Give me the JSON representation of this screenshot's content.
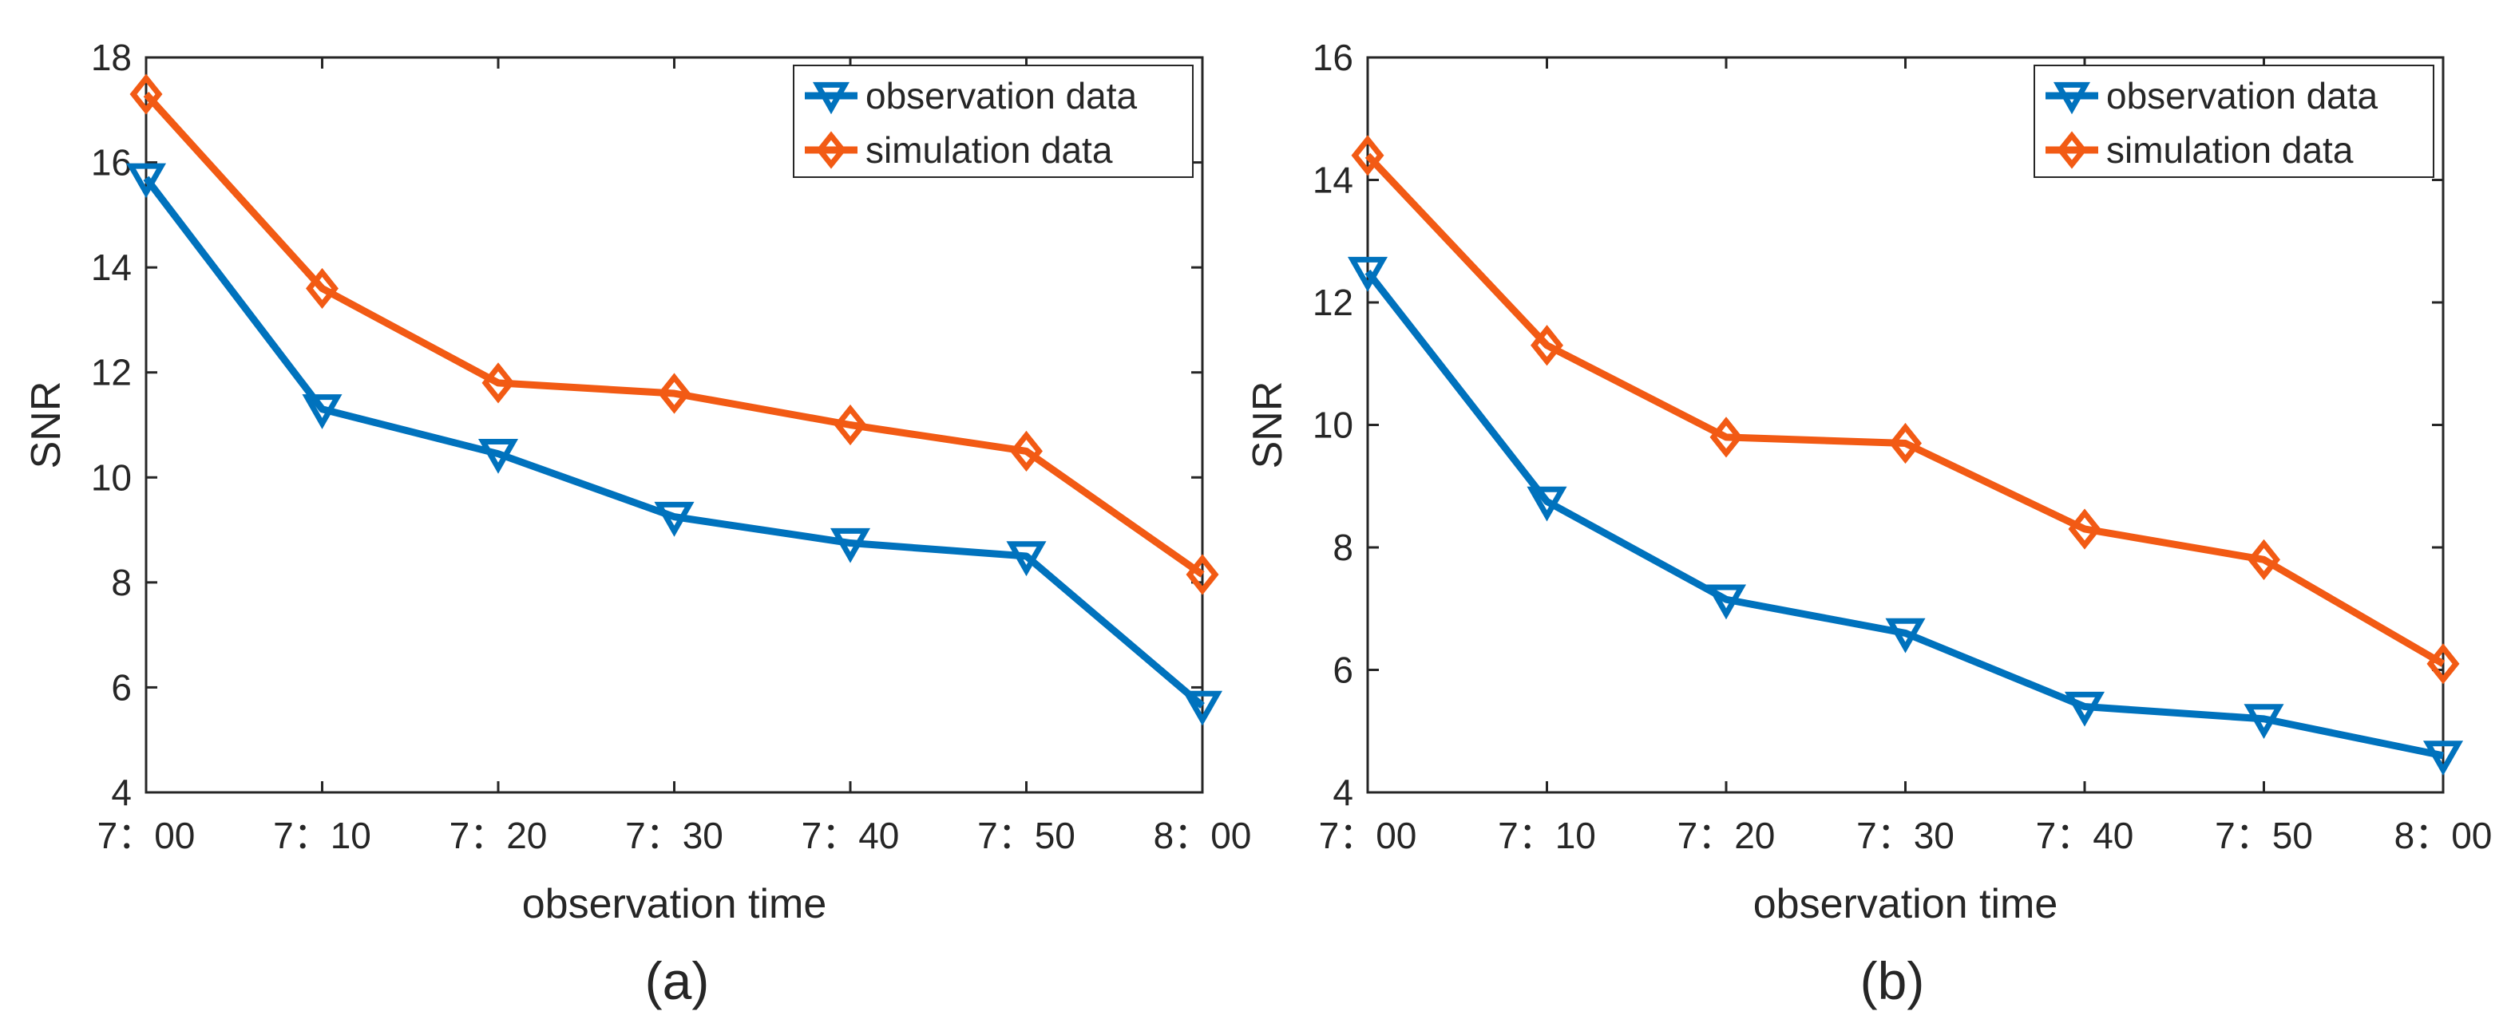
{
  "chart_data": [
    {
      "type": "line",
      "panel_label": "(a)",
      "categories": [
        "7：00",
        "7：10",
        "7：20",
        "7：30",
        "7：40",
        "7：50",
        "8：00"
      ],
      "xlabel": "observation time",
      "ylabel": "SNR",
      "ylim": [
        4,
        18
      ],
      "yticks": [
        4,
        6,
        8,
        10,
        12,
        14,
        16,
        18
      ],
      "legend_position": "top-right",
      "series": [
        {
          "name": "observation data",
          "color": "#0072BD",
          "marker": "triangle-down",
          "values": [
            15.7,
            11.3,
            10.45,
            9.25,
            8.75,
            8.5,
            5.65
          ]
        },
        {
          "name": "simulation data",
          "color": "#F25A14",
          "marker": "diamond",
          "values": [
            17.3,
            13.6,
            11.8,
            11.6,
            11.0,
            10.5,
            8.15
          ]
        }
      ]
    },
    {
      "type": "line",
      "panel_label": "(b)",
      "categories": [
        "7：00",
        "7：10",
        "7：20",
        "7：30",
        "7：40",
        "7：50",
        "8：00"
      ],
      "xlabel": "observation time",
      "ylabel": "SNR",
      "ylim": [
        4,
        16
      ],
      "yticks": [
        4,
        6,
        8,
        10,
        12,
        14,
        16
      ],
      "legend_position": "top-right",
      "series": [
        {
          "name": "observation data",
          "color": "#0072BD",
          "marker": "triangle-down",
          "values": [
            12.5,
            8.75,
            7.15,
            6.6,
            5.4,
            5.2,
            4.6
          ]
        },
        {
          "name": "simulation data",
          "color": "#F25A14",
          "marker": "diamond",
          "values": [
            14.4,
            11.3,
            9.8,
            9.7,
            8.3,
            7.8,
            6.1
          ]
        }
      ]
    }
  ]
}
